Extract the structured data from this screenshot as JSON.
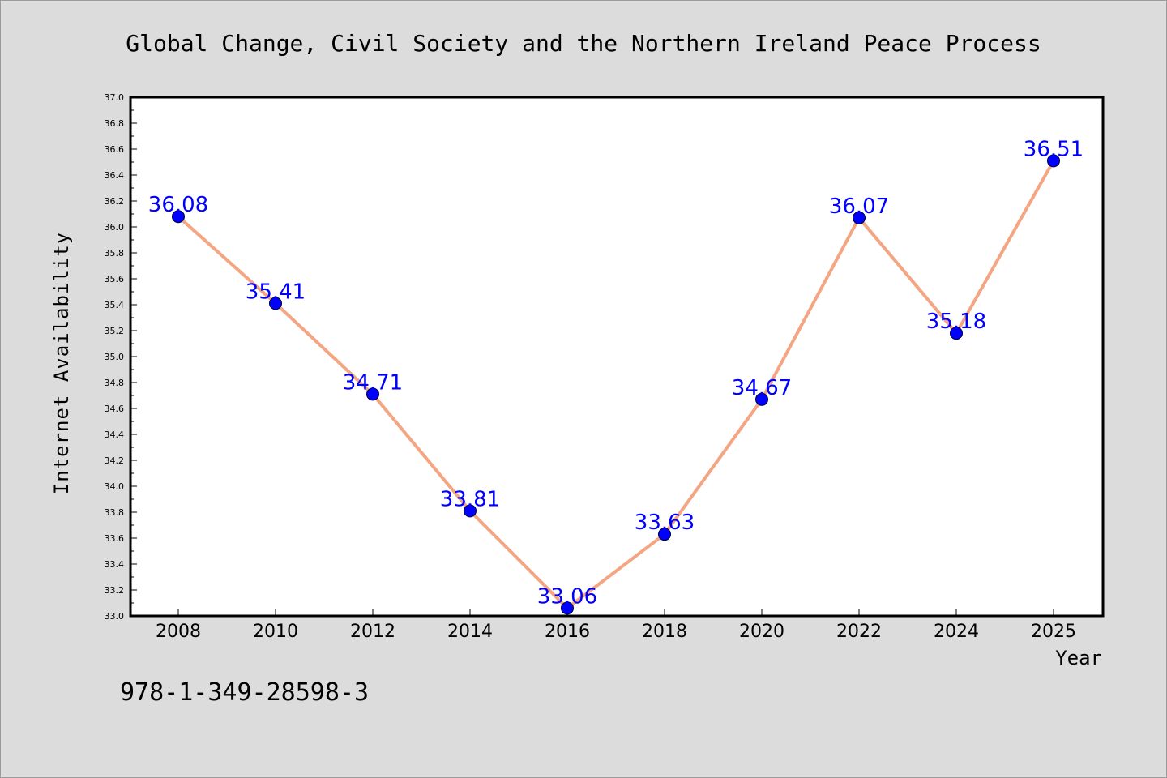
{
  "chart_data": {
    "type": "line",
    "title": "Global Change, Civil Society and the Northern Ireland Peace Process",
    "xlabel": "Year",
    "ylabel": "Internet Availability",
    "categories": [
      "2008",
      "2010",
      "2012",
      "2014",
      "2016",
      "2018",
      "2020",
      "2022",
      "2024",
      "2025"
    ],
    "series": [
      {
        "values": [
          36.08,
          35.41,
          34.71,
          33.81,
          33.06,
          33.63,
          34.67,
          36.07,
          35.18,
          36.51
        ],
        "labels": [
          "36.08",
          "35.41",
          "34.71",
          "33.81",
          "33.06",
          "33.63",
          "34.67",
          "36.07",
          "35.18",
          "36.51"
        ],
        "line_color": "#f4a582",
        "marker_color": "#0000ff"
      }
    ],
    "ylim": [
      33.0,
      37.0
    ],
    "yticks": [
      "33.0",
      "33.2",
      "33.4",
      "33.6",
      "33.8",
      "34.0",
      "34.2",
      "34.4",
      "34.6",
      "34.8",
      "35.0",
      "35.2",
      "35.4",
      "35.6",
      "35.8",
      "36.0",
      "36.2",
      "36.4",
      "36.6",
      "36.8",
      "37.0"
    ],
    "grid": false,
    "label_color": "#0000ff"
  },
  "footnote": "978-1-349-28598-3",
  "colors": {
    "background": "#dcdcdc",
    "plot_background": "#ffffff",
    "axis": "#000000"
  }
}
